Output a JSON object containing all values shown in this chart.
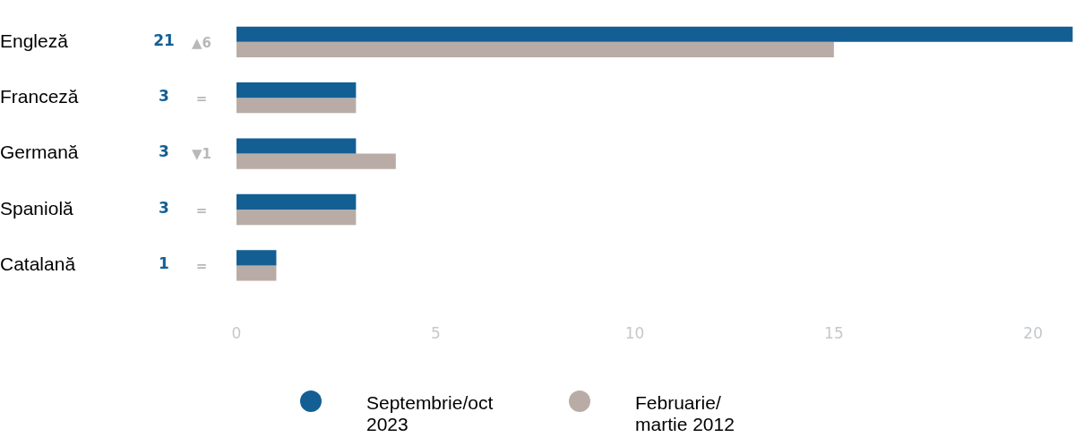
{
  "chart_data": {
    "type": "bar",
    "orientation": "horizontal",
    "categories": [
      "Engleză",
      "Franceză",
      "Germană",
      "Spaniolă",
      "Catalană"
    ],
    "series": [
      {
        "name": "Septembrie/oct 2023",
        "color": "#135f94",
        "values": [
          21,
          3,
          3,
          3,
          1
        ],
        "value_labels": [
          "21",
          "3",
          "3",
          "3",
          "1"
        ]
      },
      {
        "name": "Februarie/ martie 2012",
        "color": "#b9aca6",
        "values": [
          15,
          3,
          4,
          3,
          1
        ]
      }
    ],
    "xlim": [
      0,
      21
    ],
    "xticks": [
      0,
      5,
      10,
      15,
      20
    ],
    "grid": false,
    "legend": "bottom",
    "annotations": [
      "▲6",
      "=",
      "▼1",
      "=",
      "="
    ]
  }
}
